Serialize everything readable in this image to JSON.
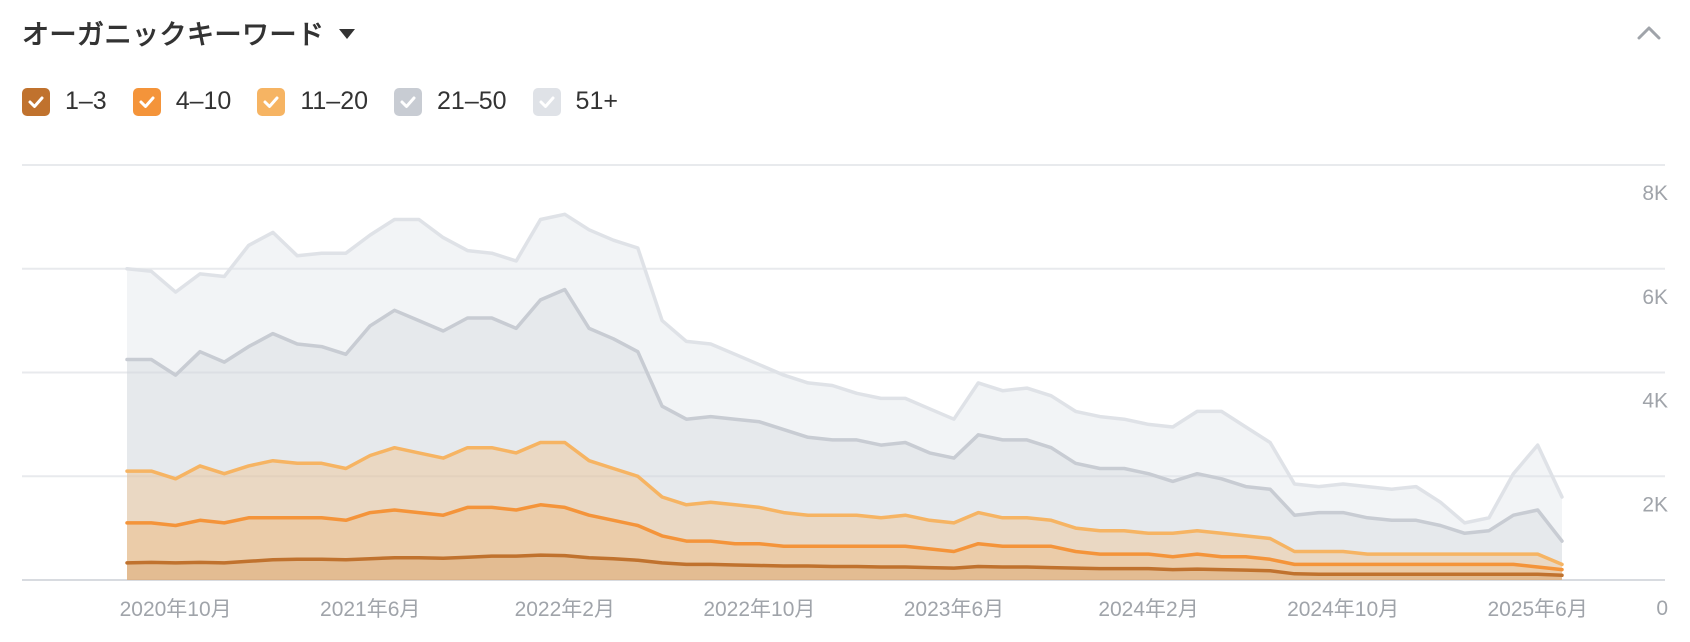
{
  "header": {
    "title": "オーガニックキーワード",
    "dropdown_icon": "caret-down-icon",
    "collapse_icon": "chevron-up-icon"
  },
  "legend": [
    {
      "label": "1–3",
      "color": "#c0722e",
      "checked": true
    },
    {
      "label": "4–10",
      "color": "#f4943a",
      "checked": true
    },
    {
      "label": "11–20",
      "color": "#f6b463",
      "checked": true
    },
    {
      "label": "21–50",
      "color": "#c8ccd3",
      "checked": true
    },
    {
      "label": "51+",
      "color": "#dfe2e7",
      "checked": true
    }
  ],
  "chart_data": {
    "type": "area",
    "stacked": false,
    "grid": true,
    "y_axis_position": "right",
    "ylim": [
      0,
      8000
    ],
    "y_ticks": [
      "8K",
      "6K",
      "4K",
      "2K",
      "0"
    ],
    "x_ticks": [
      "2020年10月",
      "2021年6月",
      "2022年2月",
      "2022年10月",
      "2023年6月",
      "2024年2月",
      "2024年10月",
      "2025年6月"
    ],
    "x_tick_positions": [
      2,
      10,
      18,
      26,
      34,
      42,
      50,
      58
    ],
    "x": [
      "2020年8月",
      "2020年9月",
      "2020年10月",
      "2020年11月",
      "2020年12月",
      "2021年1月",
      "2021年2月",
      "2021年3月",
      "2021年4月",
      "2021年5月",
      "2021年6月",
      "2021年7月",
      "2021年8月",
      "2021年9月",
      "2021年10月",
      "2021年11月",
      "2021年12月",
      "2022年1月",
      "2022年2月",
      "2022年3月",
      "2022年4月",
      "2022年5月",
      "2022年6月",
      "2022年7月",
      "2022年8月",
      "2022年9月",
      "2022年10月",
      "2022年11月",
      "2022年12月",
      "2023年1月",
      "2023年2月",
      "2023年3月",
      "2023年4月",
      "2023年5月",
      "2023年6月",
      "2023年7月",
      "2023年8月",
      "2023年9月",
      "2023年10月",
      "2023年11月",
      "2023年12月",
      "2024年1月",
      "2024年2月",
      "2024年3月",
      "2024年4月",
      "2024年5月",
      "2024年6月",
      "2024年7月",
      "2024年8月",
      "2024年9月",
      "2024年10月",
      "2024年11月",
      "2024年12月",
      "2025年1月",
      "2025年2月",
      "2025年3月",
      "2025年4月",
      "2025年5月",
      "2025年6月",
      "2025年7月"
    ],
    "series": [
      {
        "name": "51+",
        "color": "#dfe2e7",
        "values": [
          6000,
          5950,
          5550,
          5900,
          5850,
          6450,
          6700,
          6250,
          6300,
          6300,
          6650,
          6950,
          6950,
          6600,
          6350,
          6300,
          6150,
          6950,
          7050,
          6750,
          6550,
          6400,
          5000,
          4600,
          4550,
          4350,
          4150,
          3950,
          3800,
          3750,
          3600,
          3500,
          3500,
          3300,
          3100,
          3800,
          3650,
          3700,
          3550,
          3250,
          3150,
          3100,
          3000,
          2950,
          3250,
          3250,
          2950,
          2650,
          1850,
          1800,
          1850,
          1800,
          1750,
          1800,
          1500,
          1100,
          1200,
          2050,
          2600,
          1600
        ]
      },
      {
        "name": "21–50",
        "color": "#c8ccd3",
        "values": [
          4250,
          4250,
          3950,
          4400,
          4200,
          4500,
          4750,
          4550,
          4500,
          4350,
          4900,
          5200,
          5000,
          4800,
          5050,
          5050,
          4850,
          5400,
          5600,
          4850,
          4650,
          4400,
          3350,
          3100,
          3150,
          3100,
          3050,
          2900,
          2750,
          2700,
          2700,
          2600,
          2650,
          2450,
          2350,
          2800,
          2700,
          2700,
          2550,
          2250,
          2150,
          2150,
          2050,
          1900,
          2050,
          1950,
          1800,
          1750,
          1250,
          1300,
          1300,
          1200,
          1150,
          1150,
          1050,
          900,
          950,
          1250,
          1350,
          750
        ]
      },
      {
        "name": "11–20",
        "color": "#f6b463",
        "values": [
          2100,
          2100,
          1950,
          2200,
          2050,
          2200,
          2300,
          2250,
          2250,
          2150,
          2400,
          2550,
          2450,
          2350,
          2550,
          2550,
          2450,
          2650,
          2650,
          2300,
          2150,
          2000,
          1600,
          1450,
          1500,
          1450,
          1400,
          1300,
          1250,
          1250,
          1250,
          1200,
          1250,
          1150,
          1100,
          1300,
          1200,
          1200,
          1150,
          1000,
          950,
          950,
          900,
          900,
          950,
          900,
          850,
          800,
          550,
          550,
          550,
          500,
          500,
          500,
          500,
          500,
          500,
          500,
          500,
          300
        ]
      },
      {
        "name": "4–10",
        "color": "#f4943a",
        "values": [
          1100,
          1100,
          1050,
          1150,
          1100,
          1200,
          1200,
          1200,
          1200,
          1150,
          1300,
          1350,
          1300,
          1250,
          1400,
          1400,
          1350,
          1450,
          1400,
          1250,
          1150,
          1050,
          850,
          750,
          750,
          700,
          700,
          650,
          650,
          650,
          650,
          650,
          650,
          600,
          550,
          700,
          650,
          650,
          650,
          550,
          500,
          500,
          500,
          450,
          500,
          450,
          450,
          400,
          300,
          300,
          300,
          300,
          300,
          300,
          300,
          300,
          300,
          300,
          250,
          200
        ]
      },
      {
        "name": "1–3",
        "color": "#c0722e",
        "values": [
          330,
          340,
          330,
          340,
          330,
          360,
          390,
          400,
          400,
          390,
          410,
          430,
          430,
          420,
          440,
          460,
          460,
          480,
          470,
          430,
          410,
          380,
          330,
          300,
          300,
          290,
          280,
          270,
          270,
          260,
          260,
          250,
          250,
          240,
          230,
          260,
          250,
          250,
          240,
          230,
          220,
          220,
          220,
          200,
          210,
          200,
          190,
          180,
          120,
          110,
          110,
          110,
          110,
          110,
          110,
          110,
          110,
          110,
          110,
          90
        ]
      }
    ]
  }
}
